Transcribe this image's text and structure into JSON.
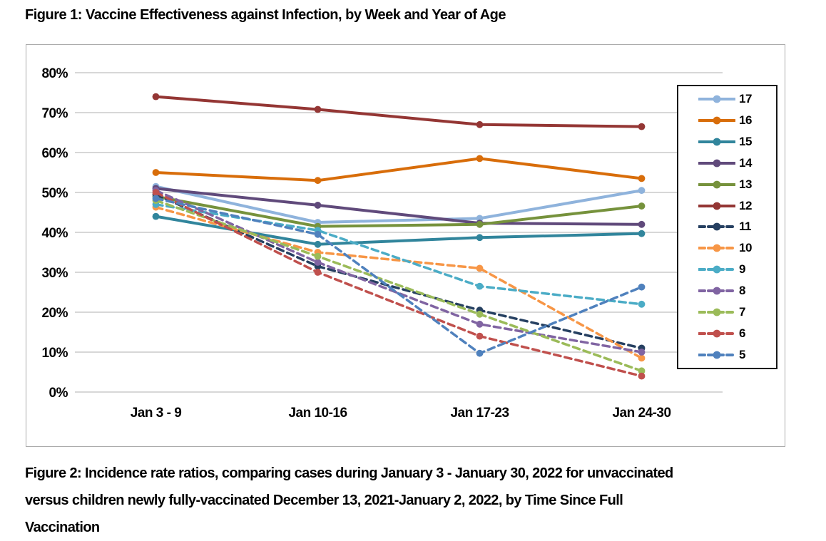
{
  "figure1_title": "Figure 1: Vaccine Effectiveness against Infection, by Week and Year of Age",
  "chart_data": {
    "type": "line",
    "title": "Figure 1: Vaccine Effectiveness against Infection, by Week and Year of Age",
    "categories": [
      "Jan 3 - 9",
      "Jan 10-16",
      "Jan 17-23",
      "Jan 24-30"
    ],
    "yticks": [
      "0%",
      "10%",
      "20%",
      "30%",
      "40%",
      "50%",
      "60%",
      "70%",
      "80%"
    ],
    "ylim": [
      0,
      80
    ],
    "ytick_step": 10,
    "grid": true,
    "legend_position": "right-inside",
    "value_unit": "percent_vaccine_effectiveness",
    "series": [
      {
        "name": "17",
        "style": "solid",
        "color": "#8FB3DC",
        "values": [
          51.5,
          42.5,
          43.5,
          50.5
        ]
      },
      {
        "name": "16",
        "style": "solid",
        "color": "#D86D0A",
        "values": [
          55,
          53,
          58.5,
          53.5
        ]
      },
      {
        "name": "15",
        "style": "solid",
        "color": "#31859C",
        "values": [
          44,
          37,
          38.7,
          39.7
        ]
      },
      {
        "name": "14",
        "style": "solid",
        "color": "#604A7B",
        "values": [
          51,
          46.8,
          42.3,
          42
        ]
      },
      {
        "name": "13",
        "style": "solid",
        "color": "#76923C",
        "values": [
          49,
          41.5,
          42,
          46.6
        ]
      },
      {
        "name": "12",
        "style": "solid",
        "color": "#943634",
        "values": [
          74,
          70.8,
          67,
          66.5
        ]
      },
      {
        "name": "11",
        "style": "dashed",
        "color": "#264061",
        "values": [
          49.5,
          31.5,
          20.5,
          11
        ]
      },
      {
        "name": "10",
        "style": "dashed",
        "color": "#F79646",
        "values": [
          46.3,
          35,
          31,
          8.5
        ]
      },
      {
        "name": "9",
        "style": "dashed",
        "color": "#4BACC6",
        "values": [
          47,
          40.5,
          26.5,
          22
        ]
      },
      {
        "name": "8",
        "style": "dashed",
        "color": "#8064A2",
        "values": [
          50.5,
          32.5,
          17,
          10
        ]
      },
      {
        "name": "7",
        "style": "dashed",
        "color": "#9BBB59",
        "values": [
          48,
          34,
          19.5,
          5.3
        ]
      },
      {
        "name": "6",
        "style": "dashed",
        "color": "#C0504D",
        "values": [
          50,
          30,
          14,
          4
        ]
      },
      {
        "name": "5",
        "style": "dashed",
        "color": "#4F81BD",
        "values": [
          48.5,
          39.5,
          9.7,
          26.3
        ]
      }
    ]
  },
  "figure2_caption_lines": [
    "Figure 2:  Incidence rate ratios, comparing cases during January 3 - January 30, 2022 for unvaccinated",
    "versus children newly fully-vaccinated December 13, 2021-January 2, 2022, by Time Since Full",
    "Vaccination"
  ]
}
